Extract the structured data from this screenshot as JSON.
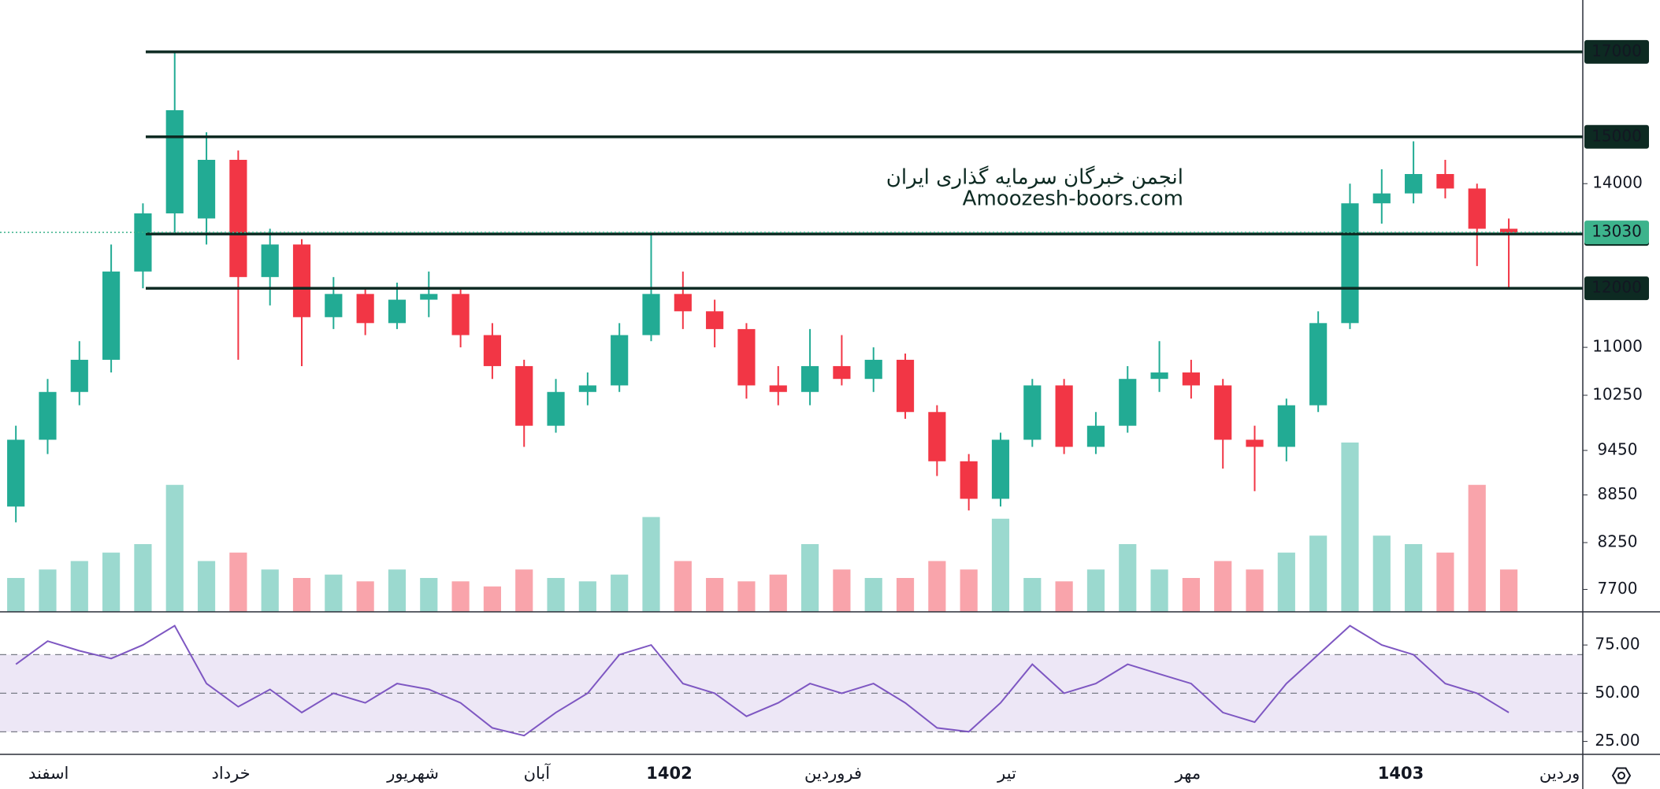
{
  "chart_data": [
    {
      "type": "candlestick",
      "log_scale": true,
      "ylim": [
        7450,
        18350
      ],
      "yticks": [
        14000,
        11000,
        10250,
        9450,
        8850,
        8250,
        7700
      ],
      "xlim": [
        -0.5,
        49.33
      ],
      "xticks": [
        {
          "value": 1.03,
          "label": "اسفند"
        },
        {
          "value": 6.77,
          "label": "خرداد"
        },
        {
          "value": 12.5,
          "label": "شهریور"
        },
        {
          "value": 16.4,
          "label": "آبان"
        },
        {
          "value": 20.57,
          "label": "1402"
        },
        {
          "value": 25.73,
          "label": "فروردین"
        },
        {
          "value": 31.2,
          "label": "تیر"
        },
        {
          "value": 36.9,
          "label": "مهر"
        },
        {
          "value": 43.6,
          "label": "1403"
        },
        {
          "value": 48.6,
          "label": "وردین"
        }
      ],
      "open": [
        8700,
        9600,
        10300,
        10800,
        12300,
        13400,
        13300,
        14500,
        12200,
        12800,
        11500,
        11900,
        11400,
        11800,
        11900,
        11200,
        10700,
        9800,
        10300,
        10400,
        11200,
        11900,
        11600,
        11300,
        10400,
        10300,
        10700,
        10500,
        10800,
        10000,
        9300,
        8800,
        9600,
        10400,
        9500,
        9800,
        10500,
        10600,
        10400,
        9600,
        9500,
        10100,
        11400,
        13600,
        13800,
        14200,
        13900,
        13100
      ],
      "high": [
        9800,
        10500,
        11100,
        12800,
        13600,
        17000,
        15100,
        14700,
        13100,
        12900,
        12200,
        12000,
        12100,
        12300,
        12000,
        11400,
        10800,
        10500,
        10600,
        11400,
        13000,
        12300,
        11800,
        11400,
        10700,
        11300,
        11200,
        11000,
        10900,
        10100,
        9400,
        9700,
        10500,
        10500,
        10000,
        10700,
        11100,
        10800,
        10500,
        9800,
        10200,
        11600,
        14000,
        14300,
        14900,
        14500,
        14000,
        13300
      ],
      "low": [
        8500,
        9400,
        10100,
        10600,
        12000,
        13000,
        12800,
        10800,
        11700,
        10700,
        11300,
        11200,
        11300,
        11500,
        11000,
        10500,
        9500,
        9700,
        10100,
        10300,
        11100,
        11300,
        11000,
        10200,
        10100,
        10100,
        10400,
        10300,
        9900,
        9100,
        8650,
        8700,
        9500,
        9400,
        9400,
        9700,
        10300,
        10200,
        9200,
        8900,
        9300,
        10000,
        11300,
        13200,
        13600,
        13700,
        12400,
        12000
      ],
      "close": [
        9600,
        10300,
        10800,
        12300,
        13400,
        15600,
        14500,
        12200,
        12800,
        11500,
        11900,
        11400,
        11800,
        11900,
        11200,
        10700,
        9800,
        10300,
        10400,
        11200,
        11900,
        11600,
        11300,
        10400,
        10300,
        10700,
        10500,
        10800,
        10000,
        9300,
        8800,
        9600,
        10400,
        9500,
        9800,
        10500,
        10600,
        10400,
        9600,
        9500,
        10100,
        11400,
        13600,
        13800,
        14200,
        13900,
        13100,
        13030
      ],
      "vlim": [
        0,
        100
      ],
      "volume": [
        20,
        25,
        30,
        35,
        40,
        75,
        30,
        35,
        25,
        20,
        22,
        18,
        25,
        20,
        18,
        15,
        25,
        20,
        18,
        22,
        56,
        30,
        20,
        18,
        22,
        40,
        25,
        20,
        20,
        30,
        25,
        55,
        20,
        18,
        25,
        40,
        25,
        20,
        30,
        25,
        35,
        45,
        100,
        45,
        40,
        35,
        75,
        25
      ],
      "up_color": "#22ab94",
      "down_color": "#f23645",
      "levels": [
        17000,
        15000,
        13000,
        12000
      ],
      "level_color": "#0d2a22",
      "last_price": 13030,
      "last_price_color": "#3db38c",
      "watermark": [
        "انجمن خبرگان سرمایه گذاری ایران",
        "Amoozesh-boors.com"
      ]
    },
    {
      "type": "line",
      "values": [
        65,
        77,
        72,
        68,
        75,
        85,
        55,
        43,
        52,
        40,
        50,
        45,
        55,
        52,
        45,
        32,
        28,
        40,
        50,
        70,
        75,
        55,
        50,
        38,
        45,
        55,
        50,
        55,
        45,
        32,
        30,
        45,
        65,
        50,
        55,
        65,
        60,
        55,
        40,
        35,
        55,
        70,
        85,
        75,
        70,
        55,
        50,
        40
      ],
      "color": "#7e57c2",
      "ylim": [
        18.3,
        92.2
      ],
      "yticks": [
        {
          "value": 75,
          "label": "75.00"
        },
        {
          "value": 50,
          "label": "50.00"
        },
        {
          "value": 25,
          "label": "25.00"
        }
      ],
      "band": [
        30,
        70
      ],
      "band_color": "#ede7f6",
      "dashed_levels": [
        30,
        50,
        70
      ]
    }
  ]
}
